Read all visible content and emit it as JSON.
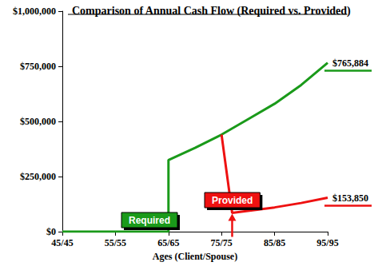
{
  "chart_data": {
    "type": "line",
    "title": "Comparison of Annual Cash Flow (Required vs. Provided)",
    "x_label": "Ages (Client/Spouse)",
    "xlim": [
      45,
      95
    ],
    "xticks": [
      {
        "value": 45,
        "label": "45/45"
      },
      {
        "value": 55,
        "label": "55/55"
      },
      {
        "value": 65,
        "label": "65/65"
      },
      {
        "value": 75,
        "label": "75/75"
      },
      {
        "value": 85,
        "label": "85/85"
      },
      {
        "value": 95,
        "label": "95/95"
      }
    ],
    "ylim": [
      0,
      1000000
    ],
    "yticks": [
      {
        "value": 0,
        "label": "$0"
      },
      {
        "value": 250000,
        "label": "$250,000"
      },
      {
        "value": 500000,
        "label": "$500,000"
      },
      {
        "value": 750000,
        "label": "$750,000"
      },
      {
        "value": 1000000,
        "label": "$1,000,000"
      }
    ],
    "grid": false,
    "legend": false,
    "series": [
      {
        "name": "Required",
        "color": "#1a9a1a",
        "line_style": "solid",
        "x": [
          45,
          65,
          65,
          70,
          75,
          80,
          85,
          90,
          95
        ],
        "values": [
          0,
          0,
          325000,
          380000,
          440000,
          510000,
          580000,
          665000,
          765884
        ],
        "value_labels": [
          null,
          null,
          null,
          null,
          null,
          null,
          null,
          null,
          "$765,884"
        ]
      },
      {
        "name": "Provided",
        "color": "#ee1111",
        "line_style": "solid",
        "x": [
          75,
          77,
          85,
          90,
          95
        ],
        "values": [
          440000,
          85000,
          110000,
          130000,
          153850
        ],
        "value_labels": [
          null,
          null,
          null,
          null,
          "$153,850"
        ]
      }
    ]
  }
}
